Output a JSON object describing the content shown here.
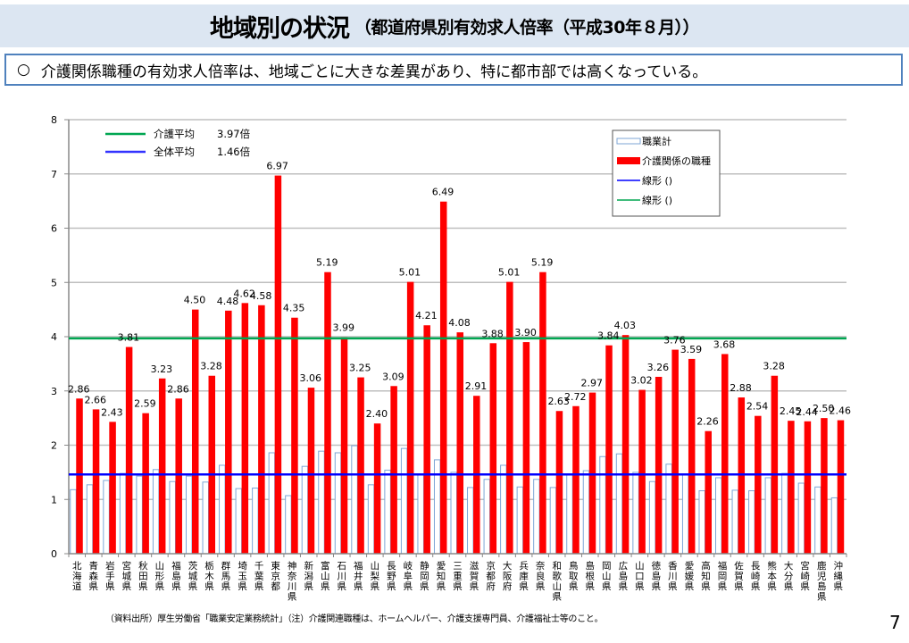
{
  "header": {
    "title": "地域別の状況",
    "subtitle": "（都道府県別有効求人倍率（平成30年８月））"
  },
  "summary": {
    "bullet": "○",
    "text": "介護関係職種の有効求人倍率は、地域ごとに大きな差異があり、特に都市部では高くなっている。"
  },
  "footnote": "（資料出所）厚生労働省「職業安定業務統計」（注）介護関連職種は、ホームヘルパー、介護支援専門員、介護福祉士等のこと。",
  "page_number": "7",
  "chart_data": {
    "type": "bar",
    "title": "",
    "xlabel": "",
    "ylabel": "",
    "ylim": [
      0,
      8
    ],
    "yticks": [
      0,
      1,
      2,
      3,
      4,
      5,
      6,
      7,
      8
    ],
    "grid": true,
    "categories": [
      "北海道",
      "青森県",
      "岩手県",
      "宮城県",
      "秋田県",
      "山形県",
      "福島県",
      "茨城県",
      "栃木県",
      "群馬県",
      "埼玉県",
      "千葉県",
      "東京都",
      "神奈川県",
      "新潟県",
      "富山県",
      "石川県",
      "福井県",
      "山梨県",
      "長野県",
      "岐阜県",
      "静岡県",
      "愛知県",
      "三重県",
      "滋賀県",
      "京都府",
      "大阪府",
      "兵庫県",
      "奈良県",
      "和歌山県",
      "鳥取県",
      "島根県",
      "岡山県",
      "広島県",
      "山口県",
      "徳島県",
      "香川県",
      "愛媛県",
      "高知県",
      "福岡県",
      "佐賀県",
      "長崎県",
      "熊本県",
      "大分県",
      "宮崎県",
      "鹿児島県",
      "沖縄県"
    ],
    "series": [
      {
        "name": "職業計",
        "color": "#ffffff",
        "border": "#7ea6d6",
        "values": [
          1.18,
          1.27,
          1.35,
          1.48,
          1.43,
          1.55,
          1.33,
          1.43,
          1.32,
          1.63,
          1.2,
          1.21,
          1.86,
          1.07,
          1.61,
          1.89,
          1.86,
          1.99,
          1.27,
          1.54,
          1.94,
          1.47,
          1.73,
          1.5,
          1.22,
          1.37,
          1.63,
          1.23,
          1.37,
          1.22,
          1.45,
          1.53,
          1.79,
          1.84,
          1.5,
          1.33,
          1.65,
          1.45,
          1.16,
          1.4,
          1.17,
          1.16,
          1.4,
          1.48,
          1.3,
          1.23,
          1.03
        ]
      },
      {
        "name": "介護関係の職種",
        "color": "#ff0000",
        "values": [
          2.86,
          2.66,
          2.43,
          3.81,
          2.59,
          3.23,
          2.86,
          4.5,
          3.28,
          4.48,
          4.62,
          4.58,
          6.97,
          4.35,
          3.06,
          5.19,
          3.99,
          3.25,
          2.4,
          3.09,
          5.01,
          4.21,
          6.49,
          4.08,
          2.91,
          3.88,
          5.01,
          3.9,
          5.19,
          2.63,
          2.72,
          2.97,
          3.84,
          4.03,
          3.02,
          3.26,
          3.76,
          3.59,
          2.26,
          3.68,
          2.88,
          2.54,
          3.28,
          2.45,
          2.44,
          2.5,
          2.46
        ],
        "labels": [
          "2.86",
          "2.66",
          "2.43",
          "3.81",
          "2.59",
          "3.23",
          "2.86",
          "4.50",
          "3.28",
          "4.48",
          "4.62",
          "4.58",
          "6.97",
          "4.35",
          "3.06",
          "5.19",
          "3.99",
          "3.25",
          "2.40",
          "3.09",
          "5.01",
          "4.21",
          "6.49",
          "4.08",
          "2.91",
          "3.88",
          "5.01",
          "3.90",
          "5.19",
          "2.63",
          "2.72",
          "2.97",
          "3.84",
          "4.03",
          "3.02",
          "3.26",
          "3.76",
          "3.59",
          "2.26",
          "3.68",
          "2.88",
          "2.54",
          "3.28",
          "2.45",
          "2.44",
          "2.50",
          "2.46"
        ]
      }
    ],
    "reference_lines": [
      {
        "name": "介護平均",
        "value": 3.97,
        "label": "3.97倍",
        "color": "#00a651"
      },
      {
        "name": "全体平均",
        "value": 1.46,
        "label": "1.46倍",
        "color": "#0000ff"
      }
    ],
    "annotation_legend": [
      {
        "label": "介護平均",
        "value_text": "3.97倍",
        "color": "#00a651"
      },
      {
        "label": "全体平均",
        "value_text": "1.46倍",
        "color": "#3333ff"
      }
    ],
    "legend": {
      "placement": "top-right",
      "entries": [
        {
          "label": "職業計",
          "kind": "box-outline",
          "color": "#7ea6d6"
        },
        {
          "label": "介護関係の職種",
          "kind": "box-fill",
          "color": "#ff0000"
        },
        {
          "label": "線形 ()",
          "kind": "line",
          "color": "#0000ff"
        },
        {
          "label": "線形 ()",
          "kind": "line",
          "color": "#00a651"
        }
      ]
    }
  }
}
